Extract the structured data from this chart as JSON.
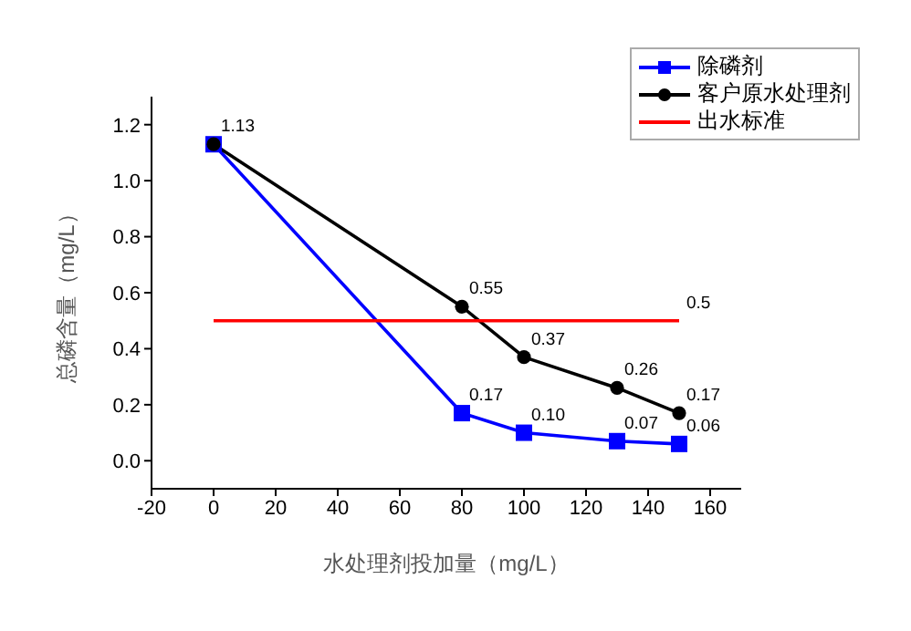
{
  "chart_data": {
    "type": "line",
    "xlabel": "水处理剂投加量（mg/L）",
    "ylabel": "总磷含量（mg/L）",
    "xlim": [
      -20,
      170
    ],
    "xticks": [
      -20,
      0,
      20,
      40,
      60,
      80,
      100,
      120,
      140,
      160
    ],
    "ylim": [
      -0.1,
      1.3
    ],
    "yticks": [
      {
        "value": 0,
        "label": "0.0"
      },
      0.2,
      0.4,
      0.6,
      0.8,
      {
        "value": 1,
        "label": "1.0"
      },
      1.2
    ],
    "legend": "top right",
    "series": [
      {
        "name": "除磷剂",
        "color": "#0000ff",
        "marker": "square",
        "x": [
          0,
          80,
          100,
          130,
          150
        ],
        "values": [
          1.13,
          0.17,
          0.1,
          0.07,
          0.06
        ],
        "value_labels": [
          null,
          "0.17",
          "0.10",
          "0.07",
          "0.06"
        ]
      },
      {
        "name": "客户原水处理剂",
        "color": "#000000",
        "marker": "circle",
        "x": [
          0,
          80,
          100,
          130,
          150
        ],
        "values": [
          1.13,
          0.55,
          0.37,
          0.26,
          0.17
        ],
        "value_labels": [
          "1.13",
          "0.55",
          "0.37",
          "0.26",
          "0.17"
        ]
      },
      {
        "name": "出水标准",
        "color": "#ff0000",
        "marker": "none",
        "x": [
          0,
          150
        ],
        "values": [
          0.5,
          0.5
        ],
        "value_labels": [
          null,
          "0.5"
        ]
      }
    ]
  }
}
